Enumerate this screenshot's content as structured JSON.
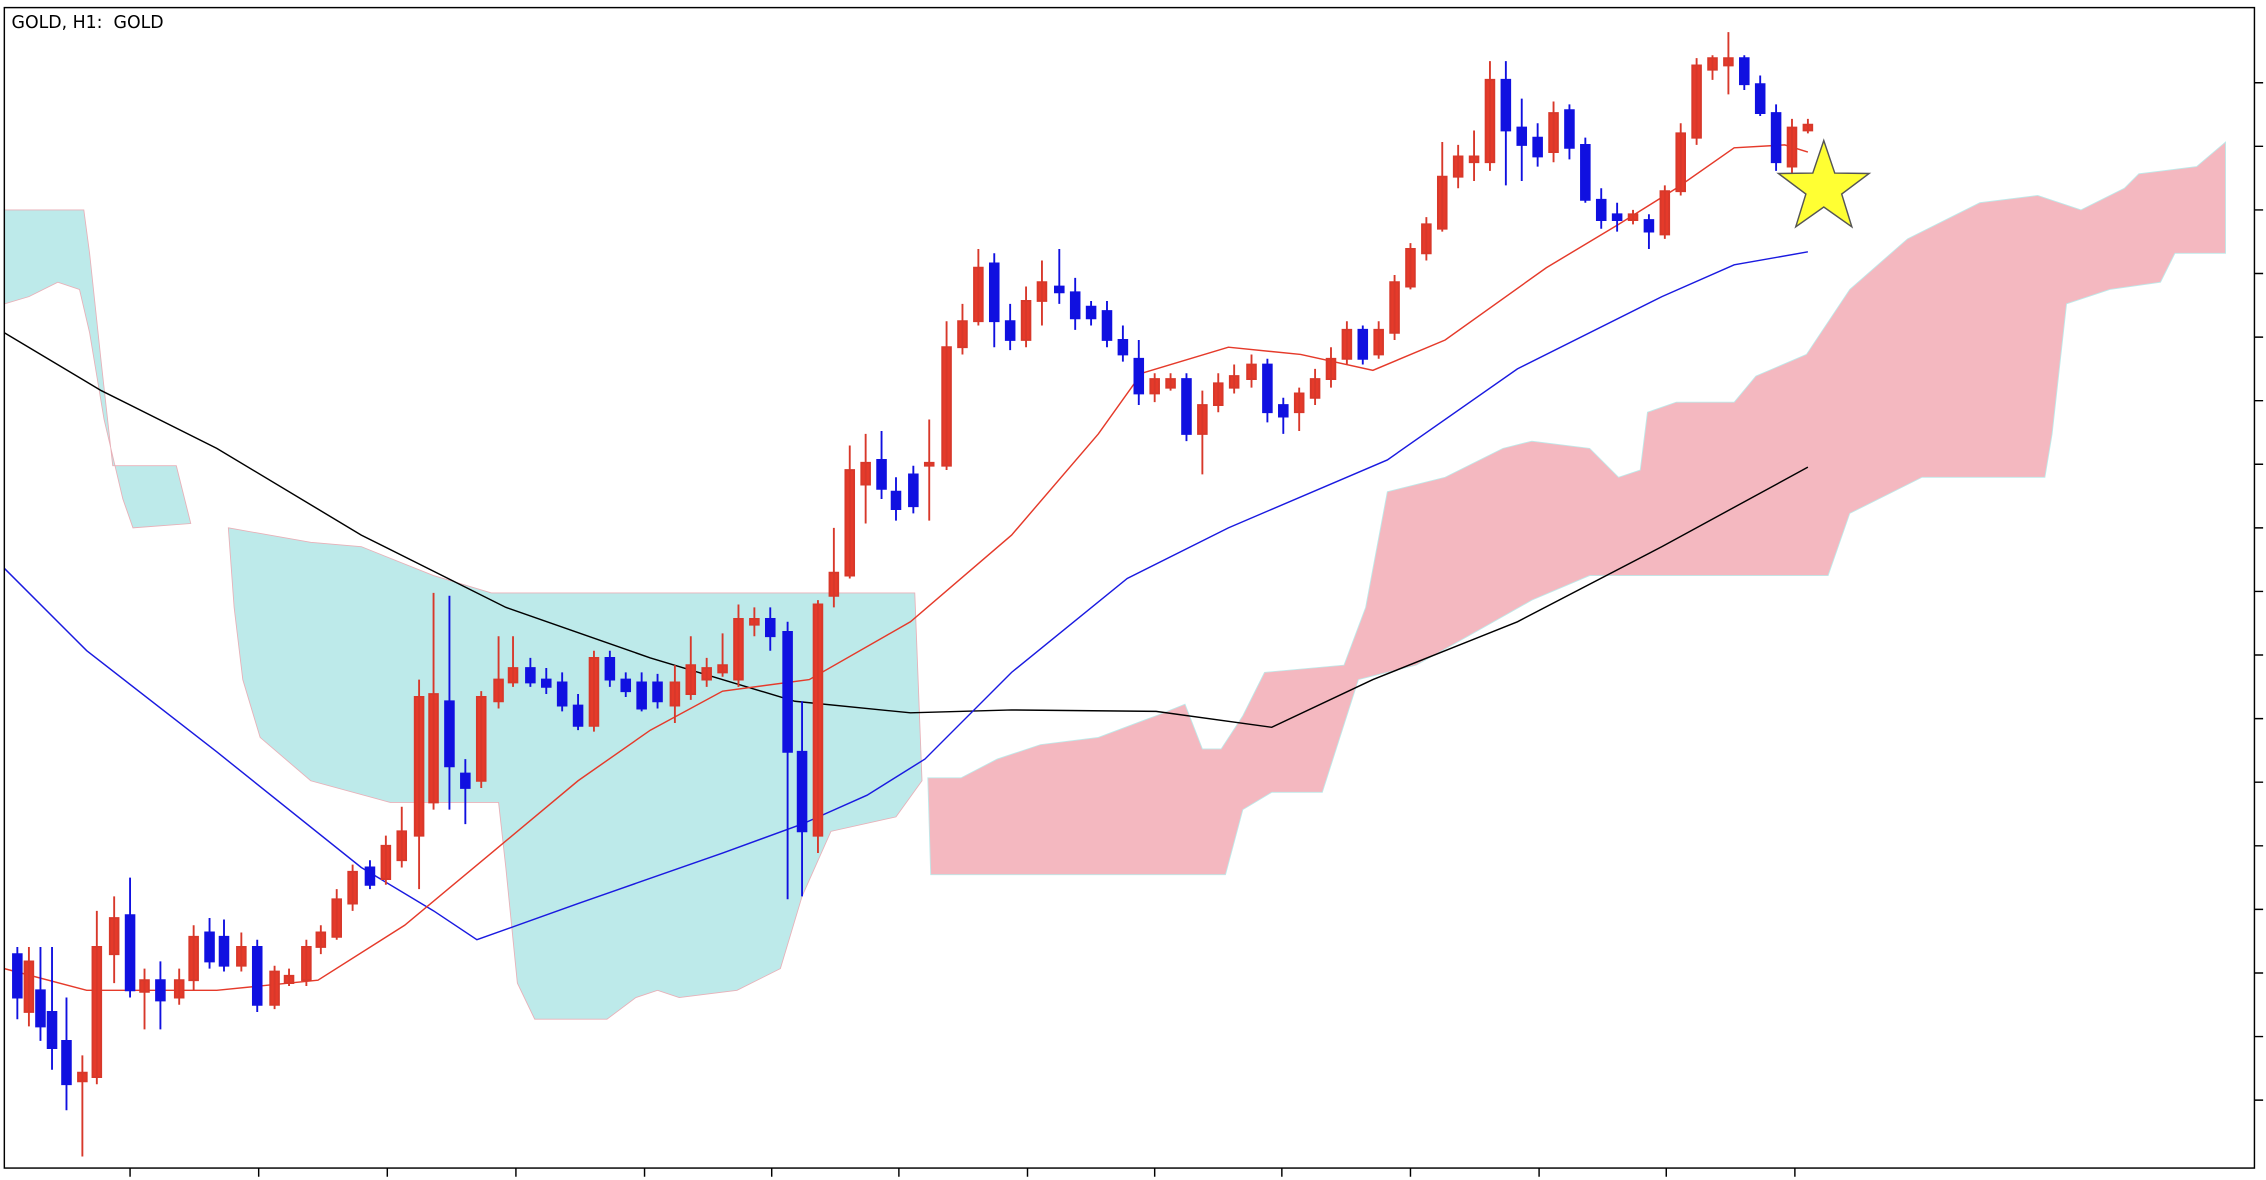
{
  "header": {
    "title": "GOLD, H1:  GOLD"
  }
}
